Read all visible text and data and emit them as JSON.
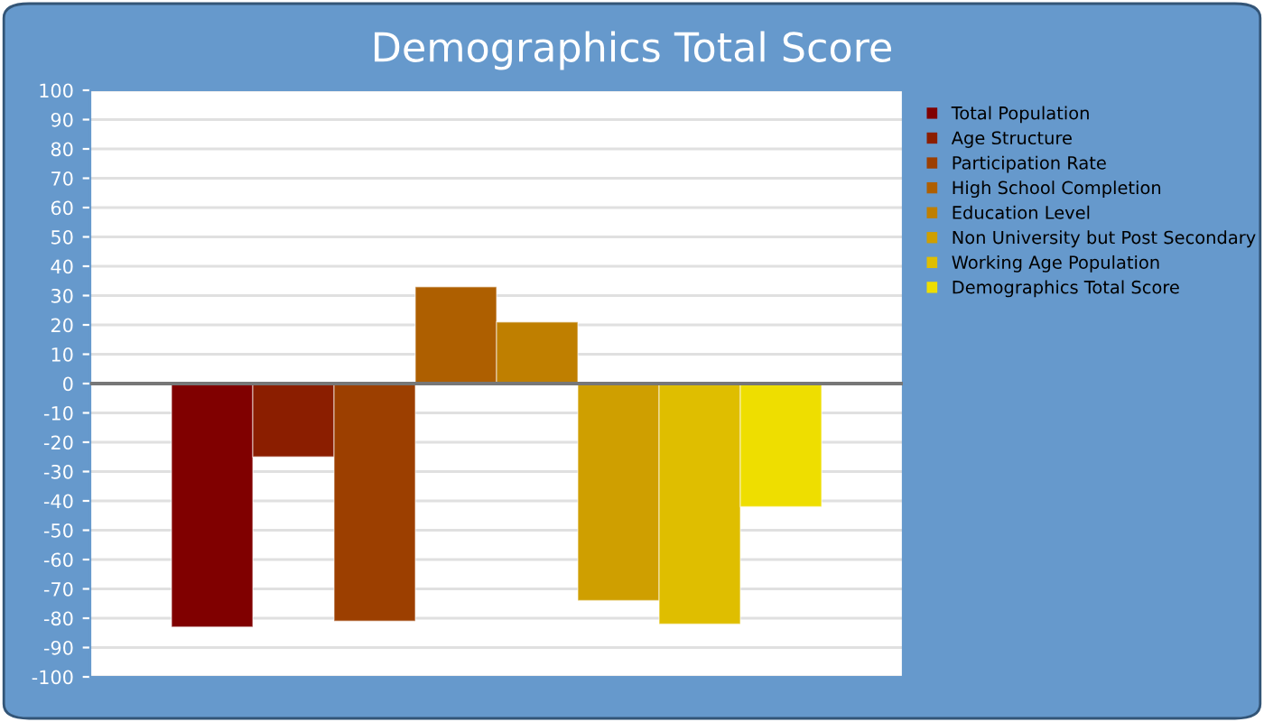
{
  "chart_data": {
    "type": "bar",
    "title": "Demographics Total Score",
    "categories": [
      null
    ],
    "series": [
      {
        "name": "Total Population",
        "color": "#800000",
        "values": [
          -83
        ]
      },
      {
        "name": "Age Structure",
        "color": "#8b1e00",
        "values": [
          -25
        ]
      },
      {
        "name": "Participation Rate",
        "color": "#9c3f00",
        "values": [
          -81
        ]
      },
      {
        "name": "High School Completion",
        "color": "#ae5f00",
        "values": [
          33
        ]
      },
      {
        "name": "Education Level",
        "color": "#bf7f00",
        "values": [
          21
        ]
      },
      {
        "name": "Non University but Post Secondary",
        "color": "#cf9f00",
        "values": [
          -74
        ]
      },
      {
        "name": "Working Age Population",
        "color": "#dfbe00",
        "values": [
          -82
        ]
      },
      {
        "name": "Demographics Total Score",
        "color": "#eede00",
        "values": [
          -42
        ]
      }
    ],
    "ylim": [
      -100,
      100
    ],
    "yticks": [
      -100,
      -90,
      -80,
      -70,
      -60,
      -50,
      -40,
      -30,
      -20,
      -10,
      0,
      10,
      20,
      30,
      40,
      50,
      60,
      70,
      80,
      90,
      100
    ],
    "grid": "y",
    "legend": "right"
  }
}
